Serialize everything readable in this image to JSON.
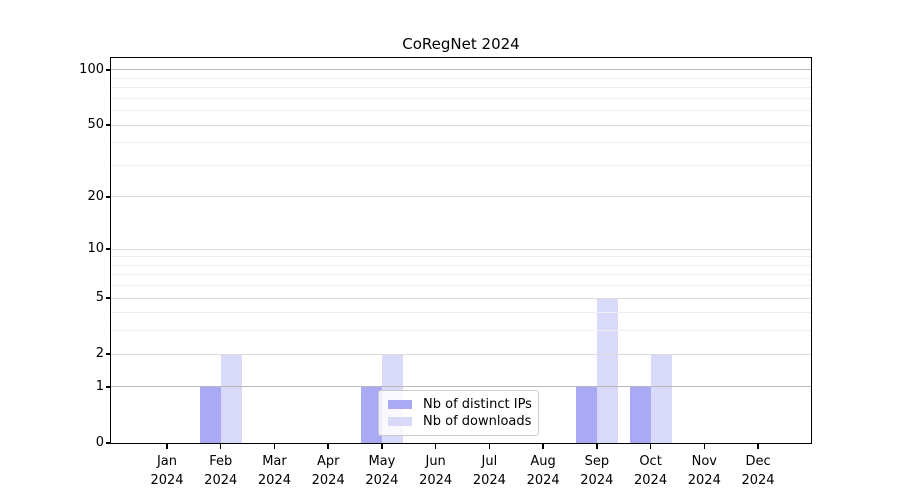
{
  "figure": {
    "background": "#ffffff"
  },
  "chart_data": {
    "type": "bar",
    "title": "CoRegNet 2024",
    "scale": "log1p",
    "categories": [
      "Jan",
      "Feb",
      "Mar",
      "Apr",
      "May",
      "Jun",
      "Jul",
      "Aug",
      "Sep",
      "Oct",
      "Nov",
      "Dec"
    ],
    "category_year": "2024",
    "series": [
      {
        "name": "Nb of distinct IPs",
        "color": "#a9a9f4",
        "values": [
          0,
          1,
          0,
          0,
          1,
          0,
          0,
          0,
          1,
          1,
          0,
          0
        ]
      },
      {
        "name": "Nb of downloads",
        "color": "#d9d9f9",
        "values": [
          0,
          2,
          0,
          0,
          2,
          0,
          0,
          0,
          5,
          2,
          0,
          0
        ]
      }
    ],
    "yticks": [
      0,
      1,
      2,
      5,
      10,
      20,
      50,
      100
    ],
    "ylim": [
      0,
      116
    ],
    "xlabel": "",
    "ylabel": "",
    "grid": {
      "minor_values": [
        3,
        4,
        6,
        7,
        8,
        9,
        30,
        40,
        60,
        70,
        80,
        90
      ],
      "emphasized_values": [
        1,
        100
      ],
      "major_color": "#dcdcdc",
      "minor_color": "#eeeeee",
      "emphasized_color": "#b9b9b9"
    },
    "legend": {
      "entries": [
        "Nb of distinct IPs",
        "Nb of downloads"
      ],
      "position": "lower center"
    }
  }
}
